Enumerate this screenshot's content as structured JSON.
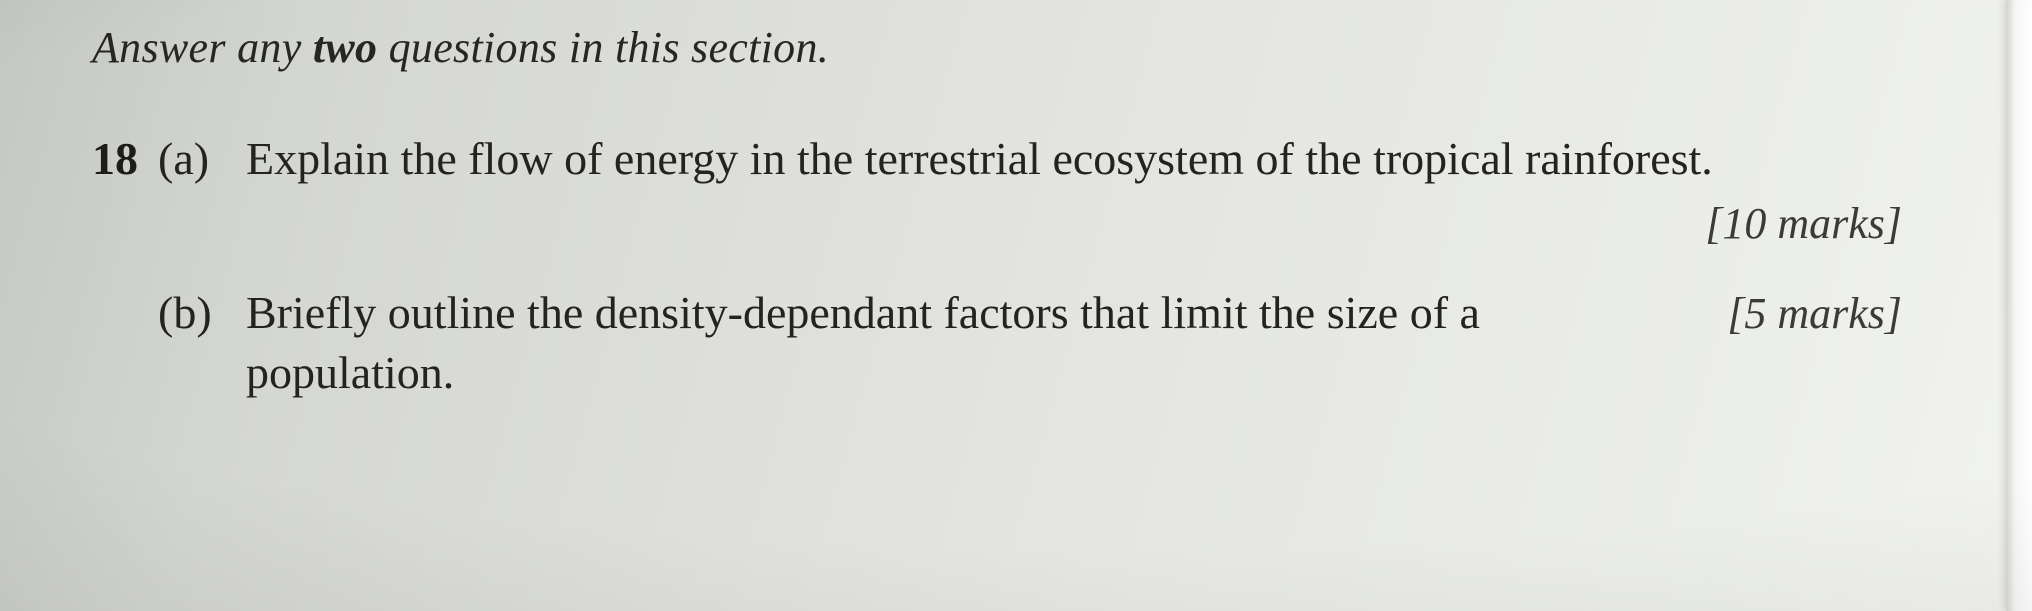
{
  "instruction": {
    "prefix": "Answer any ",
    "emph": "two",
    "suffix": " questions in this section."
  },
  "q18": {
    "number": "18",
    "a": {
      "label": "(a)",
      "text": "Explain the flow of energy in the terrestrial ecosystem of the tropical rainforest.",
      "marks": "[10 marks]"
    },
    "b": {
      "label": "(b)",
      "text": "Briefly outline the density-dependant factors that limit the size of a population.",
      "marks": "[5 marks]"
    }
  }
}
